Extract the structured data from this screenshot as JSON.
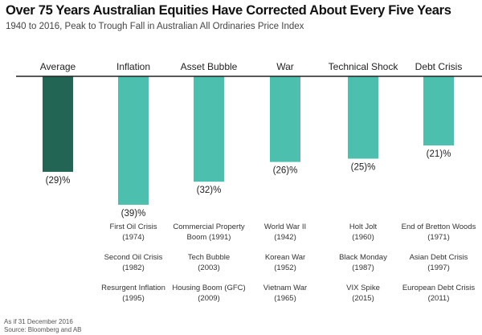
{
  "chart_data": {
    "type": "bar",
    "title": "Over 75 Years Australian Equities Have Corrected About Every Five Years",
    "subtitle": "1940 to 2016, Peak to Trough Fall in Australian All Ordinaries Price Index",
    "categories": [
      "Average",
      "Inflation",
      "Asset Bubble",
      "War",
      "Technical Shock",
      "Debt Crisis"
    ],
    "values": [
      -29,
      -39,
      -32,
      -26,
      -25,
      -21
    ],
    "value_labels": [
      "(29)%",
      "(39)%",
      "(32)%",
      "(26)%",
      "(25)%",
      "(21)%"
    ],
    "colors": [
      "#236555",
      "#4dbfae",
      "#4dbfae",
      "#4dbfae",
      "#4dbfae",
      "#4dbfae"
    ],
    "ylim": [
      -40,
      0
    ],
    "events": [
      [],
      [
        [
          "First Oil Crisis",
          "(1974)"
        ],
        [
          "Second Oil Crisis",
          "(1982)"
        ],
        [
          "Resurgent Inflation",
          "(1995)"
        ]
      ],
      [
        [
          "Commercial Property",
          "Boom (1991)"
        ],
        [
          "Tech Bubble",
          "(2003)"
        ],
        [
          "Housing Boom (GFC)",
          "(2009)"
        ]
      ],
      [
        [
          "World War II",
          "(1942)"
        ],
        [
          "Korean War",
          "(1952)"
        ],
        [
          "Vietnam War",
          "(1965)"
        ]
      ],
      [
        [
          "Holt Jolt",
          "(1960)"
        ],
        [
          "Black Monday",
          "(1987)"
        ],
        [
          "VIX Spike",
          "(2015)"
        ]
      ],
      [
        [
          "End of Bretton Woods",
          "(1971)"
        ],
        [
          "Asian Debt Crisis",
          "(1997)"
        ],
        [
          "European Debt Crisis",
          "(2011)"
        ]
      ]
    ]
  },
  "footnotes": {
    "date": "As if 31 December 2016",
    "source": "Source: Bloomberg and AB"
  }
}
